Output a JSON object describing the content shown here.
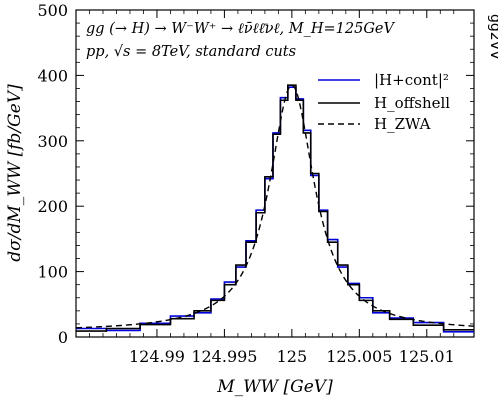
{
  "chart_data": {
    "type": "line",
    "corner_label": "gg2VV",
    "annotations": [
      "gg (→ H) → W⁻W⁺ → ℓν̄ℓℓ̄νℓ, M_H=125GeV",
      "pp, √s = 8TeV, standard cuts"
    ],
    "xlabel": "M_WW  [GeV]",
    "ylabel": "dσ/dM_WW  [fb/GeV]",
    "xlim": [
      124.984,
      125.0135
    ],
    "ylim": [
      0,
      500
    ],
    "x_ticks": [
      124.99,
      124.995,
      125,
      125.005,
      125.01
    ],
    "x_tick_labels": [
      "124.99",
      "124.995",
      "125",
      "125.005",
      "125.01"
    ],
    "y_ticks": [
      0,
      100,
      200,
      300,
      400,
      500
    ],
    "y_tick_labels": [
      "0",
      "100",
      "200",
      "300",
      "400",
      "500"
    ],
    "legend_position": "top-right",
    "series": [
      {
        "name": "|H+cont|²",
        "style": "histogram",
        "color": "#0000dd"
      },
      {
        "name": "H_offshell",
        "style": "histogram",
        "color": "#000000"
      },
      {
        "name": "H_ZWA",
        "style": "dashed",
        "color": "#000000"
      }
    ],
    "peak_x": 125,
    "peak_y": 385,
    "half_width": 0.00205,
    "baseline_x": [
      124.984,
      125.0135
    ],
    "baseline_y": [
      8,
      8
    ],
    "bins": [
      {
        "x": 124.985,
        "y": 9
      },
      {
        "x": 124.9875,
        "y": 13
      },
      {
        "x": 124.99,
        "y": 19
      },
      {
        "x": 124.992,
        "y": 28
      },
      {
        "x": 124.9935,
        "y": 40
      },
      {
        "x": 124.9945,
        "y": 56
      },
      {
        "x": 124.9955,
        "y": 80
      },
      {
        "x": 124.9962,
        "y": 110
      },
      {
        "x": 124.997,
        "y": 145
      },
      {
        "x": 124.9977,
        "y": 190
      },
      {
        "x": 124.9983,
        "y": 245
      },
      {
        "x": 124.9989,
        "y": 310
      },
      {
        "x": 124.9994,
        "y": 362
      },
      {
        "x": 125.0,
        "y": 385
      },
      {
        "x": 125.0006,
        "y": 362
      },
      {
        "x": 125.0011,
        "y": 312
      },
      {
        "x": 125.0017,
        "y": 250
      },
      {
        "x": 125.0023,
        "y": 192
      },
      {
        "x": 125.003,
        "y": 145
      },
      {
        "x": 125.0038,
        "y": 110
      },
      {
        "x": 125.0045,
        "y": 80
      },
      {
        "x": 125.0055,
        "y": 56
      },
      {
        "x": 125.0065,
        "y": 40
      },
      {
        "x": 125.008,
        "y": 27
      },
      {
        "x": 125.01,
        "y": 18
      },
      {
        "x": 125.0125,
        "y": 11
      }
    ]
  }
}
